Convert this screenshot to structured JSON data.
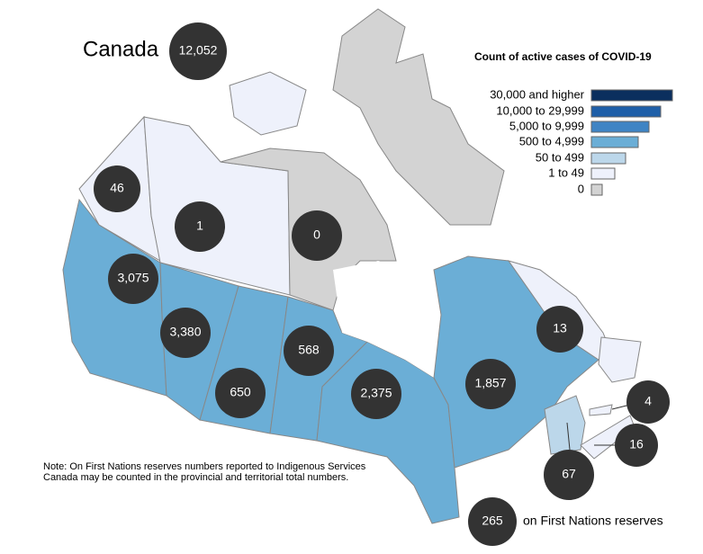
{
  "header": {
    "title": "Canada",
    "total": "12,052"
  },
  "legend": {
    "title": "Count of active cases of COVID-19",
    "items": [
      "30,000 and higher",
      "10,000 to 29,999",
      "5,000 to 9,999",
      "500 to 4,999",
      "50 to 499",
      "1 to 49",
      "0"
    ]
  },
  "regions": [
    {
      "label": "46"
    },
    {
      "label": "1"
    },
    {
      "label": "0"
    },
    {
      "label": "3,075"
    },
    {
      "label": "3,380"
    },
    {
      "label": "650"
    },
    {
      "label": "568"
    },
    {
      "label": "2,375"
    },
    {
      "label": "1,857"
    },
    {
      "label": "13"
    },
    {
      "label": "4"
    },
    {
      "label": "16"
    },
    {
      "label": "67"
    }
  ],
  "note": "Note: On First Nations reserves numbers reported to Indigenous Services Canada may be counted in the provincial and territorial total numbers.",
  "reserves": {
    "count": "265",
    "label": "on First Nations reserves"
  }
}
